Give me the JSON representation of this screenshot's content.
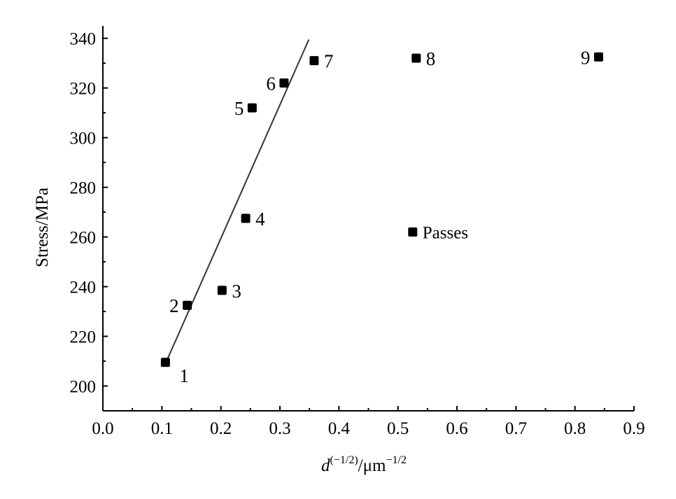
{
  "chart_data": {
    "type": "scatter",
    "title": "",
    "xlabel": {
      "base": "d",
      "sup1": "(−1/2)",
      "mid": "/μm",
      "sup2": "−1/2"
    },
    "ylabel": "Stress/MPa",
    "xlim": [
      0.0,
      0.9
    ],
    "ylim": [
      190,
      345
    ],
    "x_ticks": [
      {
        "value": 0.0,
        "label": "0.0"
      },
      {
        "value": 0.1,
        "label": "0.1"
      },
      {
        "value": 0.2,
        "label": "0.2"
      },
      {
        "value": 0.3,
        "label": "0.3"
      },
      {
        "value": 0.4,
        "label": "0.4"
      },
      {
        "value": 0.5,
        "label": "0.5"
      },
      {
        "value": 0.6,
        "label": "0.6"
      },
      {
        "value": 0.7,
        "label": "0.7"
      },
      {
        "value": 0.8,
        "label": "0.8"
      },
      {
        "value": 0.9,
        "label": "0.9"
      }
    ],
    "y_ticks": [
      {
        "value": 200,
        "label": "200"
      },
      {
        "value": 220,
        "label": "220"
      },
      {
        "value": 240,
        "label": "240"
      },
      {
        "value": 260,
        "label": "260"
      },
      {
        "value": 280,
        "label": "280"
      },
      {
        "value": 300,
        "label": "300"
      },
      {
        "value": 320,
        "label": "320"
      },
      {
        "value": 340,
        "label": "340"
      }
    ],
    "grid": false,
    "legend": {
      "placement": "center-right",
      "entries": [
        {
          "label": "Passes",
          "x": 0.525,
          "y": 262
        }
      ]
    },
    "series": [
      {
        "marker": "square",
        "color": "#000000",
        "points": [
          {
            "x": 0.106,
            "y": 209.5,
            "label": "1",
            "label_side": "lower-right"
          },
          {
            "x": 0.143,
            "y": 232.5,
            "label": "2",
            "label_side": "left"
          },
          {
            "x": 0.202,
            "y": 238.5,
            "label": "3",
            "label_side": "right"
          },
          {
            "x": 0.242,
            "y": 267.5,
            "label": "4",
            "label_side": "right"
          },
          {
            "x": 0.253,
            "y": 312.0,
            "label": "5",
            "label_side": "left"
          },
          {
            "x": 0.307,
            "y": 322.0,
            "label": "6",
            "label_side": "left"
          },
          {
            "x": 0.358,
            "y": 331.0,
            "label": "7",
            "label_side": "right"
          },
          {
            "x": 0.531,
            "y": 332.0,
            "label": "8",
            "label_side": "right"
          },
          {
            "x": 0.84,
            "y": 332.5,
            "label": "9",
            "label_side": "left"
          }
        ]
      }
    ],
    "fit_line": {
      "color": "#333333",
      "from": {
        "x": 0.106,
        "y": 209.0
      },
      "to": {
        "x": 0.349,
        "y": 339.5
      }
    }
  }
}
